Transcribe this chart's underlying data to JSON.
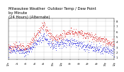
{
  "title": "Milwaukee Weather  Outdoor Temp / Dew Point\nby Minute\n(24 Hours) (Alternate)",
  "title_fontsize": 3.8,
  "bg_color": "#ffffff",
  "plot_bg_color": "#ffffff",
  "grid_color": "#888888",
  "temp_color": "#dd2222",
  "dew_color": "#2222dd",
  "ylim": [
    5,
    85
  ],
  "ytick_vals": [
    10,
    20,
    30,
    40,
    50,
    60,
    70,
    80
  ],
  "ytick_labels": [
    "1",
    "2",
    "3",
    "4",
    "5",
    "6",
    "7",
    "8"
  ],
  "xlim": [
    0,
    1440
  ],
  "seed": 7
}
